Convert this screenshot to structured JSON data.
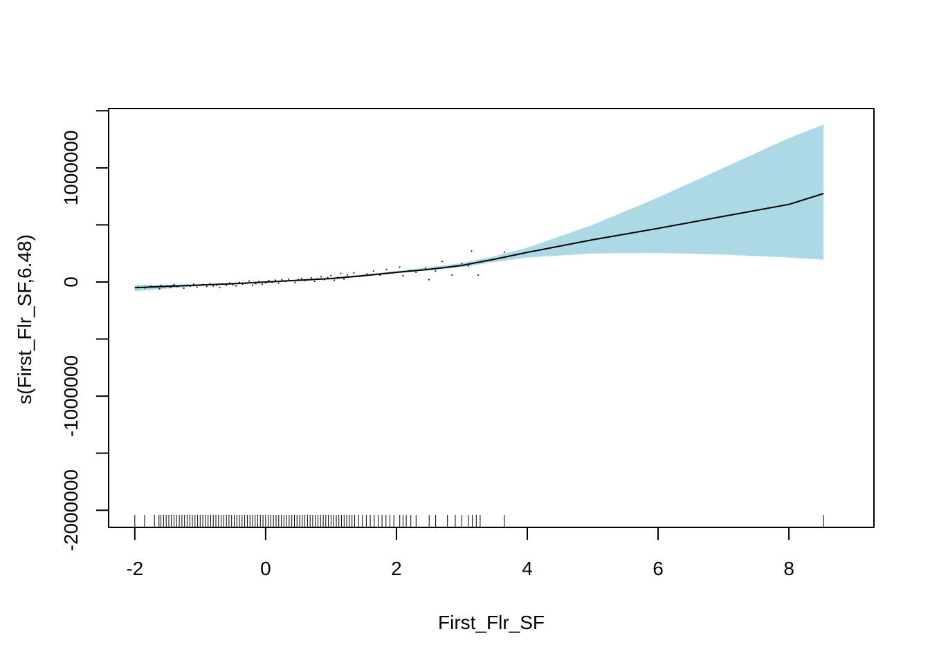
{
  "chart_data": {
    "type": "line",
    "title": "",
    "xlabel": "First_Flr_SF",
    "ylabel": "s(First_Flr_SF,6.48)",
    "xlim": [
      -2.4,
      9.3
    ],
    "ylim": [
      -2150000,
      1520000
    ],
    "x_ticks": [
      {
        "value": -2,
        "label": "-2"
      },
      {
        "value": 0,
        "label": "0"
      },
      {
        "value": 2,
        "label": "2"
      },
      {
        "value": 4,
        "label": "4"
      },
      {
        "value": 6,
        "label": "6"
      },
      {
        "value": 8,
        "label": "8"
      }
    ],
    "y_ticks": [
      {
        "value": 1500000,
        "label": ""
      },
      {
        "value": 1000000,
        "label": "1000000"
      },
      {
        "value": 500000,
        "label": ""
      },
      {
        "value": 0,
        "label": "0"
      },
      {
        "value": -500000,
        "label": ""
      },
      {
        "value": -1000000,
        "label": "-1000000"
      },
      {
        "value": -1500000,
        "label": ""
      },
      {
        "value": -2000000,
        "label": "-2000000"
      }
    ],
    "grid": false,
    "colors": {
      "confidence_band": "#add8e6",
      "fit_line": "#000000",
      "points": "#000000",
      "rug": "#000000"
    },
    "series": [
      {
        "type": "line",
        "x": [
          -2.0,
          -1.5,
          -1.0,
          -0.5,
          0.0,
          0.5,
          1.0,
          1.5,
          2.0,
          2.5,
          3.0,
          3.5,
          4.0,
          5.0,
          6.0,
          7.0,
          8.0,
          8.53
        ],
        "y": [
          -50000,
          -38000,
          -27000,
          -15000,
          0,
          15000,
          30000,
          55000,
          85000,
          110000,
          145000,
          200000,
          260000,
          370000,
          470000,
          575000,
          680000,
          775000
        ]
      },
      {
        "type": "band",
        "x": [
          -2.0,
          -1.0,
          0.0,
          1.0,
          2.0,
          3.0,
          3.5,
          4.0,
          5.0,
          6.0,
          7.0,
          8.0,
          8.53
        ],
        "upper": [
          -25000,
          -20000,
          5000,
          38000,
          95000,
          165000,
          225000,
          300000,
          500000,
          740000,
          1000000,
          1260000,
          1380000
        ],
        "lower": [
          -80000,
          -35000,
          -5000,
          22000,
          75000,
          130000,
          175000,
          215000,
          250000,
          255000,
          240000,
          215000,
          195000
        ]
      }
    ],
    "partial_residuals": [
      [
        -1.95,
        -45000
      ],
      [
        -1.85,
        -52000
      ],
      [
        -1.75,
        -38000
      ],
      [
        -1.62,
        -60000
      ],
      [
        -1.6,
        -30000
      ],
      [
        -1.55,
        -42000
      ],
      [
        -1.5,
        -35000
      ],
      [
        -1.45,
        -48000
      ],
      [
        -1.4,
        -25000
      ],
      [
        -1.35,
        -40000
      ],
      [
        -1.3,
        -33000
      ],
      [
        -1.25,
        -55000
      ],
      [
        -1.2,
        -28000
      ],
      [
        -1.15,
        -38000
      ],
      [
        -1.1,
        -20000
      ],
      [
        -1.05,
        -45000
      ],
      [
        -1.0,
        -30000
      ],
      [
        -0.95,
        -22000
      ],
      [
        -0.9,
        -40000
      ],
      [
        -0.85,
        -15000
      ],
      [
        -0.8,
        -35000
      ],
      [
        -0.75,
        -28000
      ],
      [
        -0.7,
        -50000
      ],
      [
        -0.65,
        -18000
      ],
      [
        -0.6,
        -30000
      ],
      [
        -0.55,
        -10000
      ],
      [
        -0.5,
        -25000
      ],
      [
        -0.45,
        -35000
      ],
      [
        -0.4,
        -5000
      ],
      [
        -0.35,
        -20000
      ],
      [
        -0.3,
        -12000
      ],
      [
        -0.25,
        8000
      ],
      [
        -0.2,
        -28000
      ],
      [
        -0.15,
        -15000
      ],
      [
        -0.1,
        5000
      ],
      [
        -0.05,
        -20000
      ],
      [
        0.0,
        -8000
      ],
      [
        0.05,
        12000
      ],
      [
        0.1,
        -3000
      ],
      [
        0.15,
        15000
      ],
      [
        0.2,
        -10000
      ],
      [
        0.25,
        20000
      ],
      [
        0.3,
        5000
      ],
      [
        0.35,
        25000
      ],
      [
        0.4,
        10000
      ],
      [
        0.45,
        -5000
      ],
      [
        0.5,
        22000
      ],
      [
        0.55,
        30000
      ],
      [
        0.6,
        12000
      ],
      [
        0.65,
        18000
      ],
      [
        0.7,
        35000
      ],
      [
        0.75,
        5000
      ],
      [
        0.8,
        28000
      ],
      [
        0.85,
        45000
      ],
      [
        0.9,
        20000
      ],
      [
        0.95,
        38000
      ],
      [
        1.0,
        55000
      ],
      [
        1.05,
        15000
      ],
      [
        1.1,
        40000
      ],
      [
        1.15,
        75000
      ],
      [
        1.2,
        25000
      ],
      [
        1.25,
        60000
      ],
      [
        1.3,
        45000
      ],
      [
        1.35,
        80000
      ],
      [
        1.45,
        50000
      ],
      [
        1.55,
        70000
      ],
      [
        1.65,
        95000
      ],
      [
        1.75,
        60000
      ],
      [
        1.85,
        110000
      ],
      [
        1.95,
        80000
      ],
      [
        2.05,
        130000
      ],
      [
        2.1,
        55000
      ],
      [
        2.2,
        100000
      ],
      [
        2.3,
        85000
      ],
      [
        2.45,
        120000
      ],
      [
        2.5,
        20000
      ],
      [
        2.6,
        95000
      ],
      [
        2.7,
        180000
      ],
      [
        2.8,
        130000
      ],
      [
        2.85,
        60000
      ],
      [
        3.0,
        160000
      ],
      [
        3.1,
        140000
      ],
      [
        3.15,
        270000
      ],
      [
        3.25,
        60000
      ],
      [
        3.65,
        260000
      ]
    ],
    "rug_x": [
      -2.0,
      -1.85,
      -1.7,
      -1.63,
      -1.6,
      -1.56,
      -1.52,
      -1.48,
      -1.44,
      -1.4,
      -1.36,
      -1.32,
      -1.28,
      -1.24,
      -1.2,
      -1.16,
      -1.12,
      -1.08,
      -1.04,
      -1.0,
      -0.96,
      -0.92,
      -0.88,
      -0.84,
      -0.8,
      -0.76,
      -0.72,
      -0.68,
      -0.64,
      -0.6,
      -0.56,
      -0.52,
      -0.48,
      -0.44,
      -0.4,
      -0.36,
      -0.32,
      -0.28,
      -0.24,
      -0.2,
      -0.16,
      -0.12,
      -0.08,
      -0.04,
      0.0,
      0.04,
      0.08,
      0.12,
      0.16,
      0.2,
      0.24,
      0.28,
      0.32,
      0.36,
      0.4,
      0.44,
      0.48,
      0.52,
      0.56,
      0.6,
      0.64,
      0.68,
      0.72,
      0.76,
      0.8,
      0.84,
      0.88,
      0.92,
      0.96,
      1.0,
      1.04,
      1.08,
      1.12,
      1.16,
      1.2,
      1.24,
      1.28,
      1.32,
      1.36,
      1.42,
      1.48,
      1.54,
      1.6,
      1.66,
      1.72,
      1.78,
      1.84,
      1.9,
      1.96,
      2.05,
      2.1,
      2.15,
      2.22,
      2.3,
      2.5,
      2.6,
      2.78,
      2.9,
      3.0,
      3.1,
      3.16,
      3.22,
      3.28,
      3.65,
      8.53
    ]
  }
}
